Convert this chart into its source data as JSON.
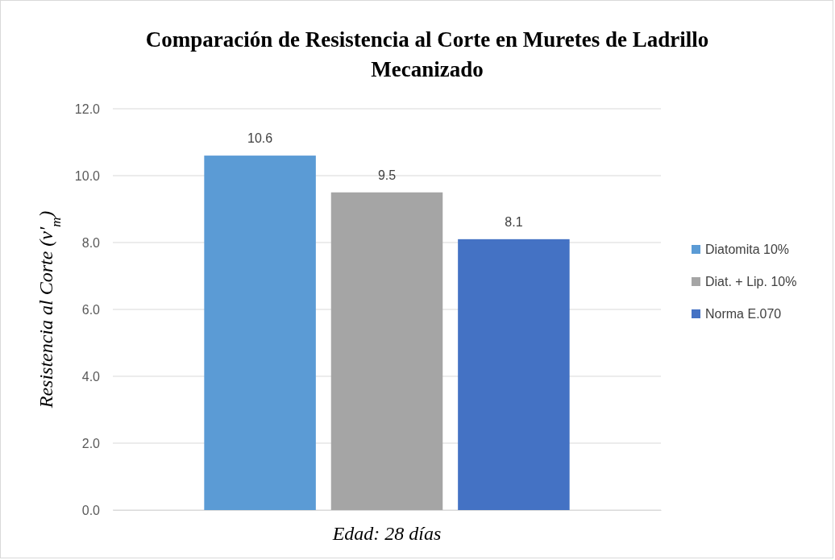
{
  "chart_data": {
    "type": "bar",
    "title": "Comparación de Resistencia al Corte en Muretes de Ladrillo Mecanizado",
    "xlabel": "Edad: 28 días",
    "ylabel": "Resistencia al Corte (v'$_{m}$)",
    "categories": [
      null
    ],
    "series": [
      {
        "name": "Diatomita 10%",
        "color": "#5b9bd5",
        "values": [
          10.6
        ]
      },
      {
        "name": "Diat. + Lip. 10%",
        "color": "#a5a5a5",
        "values": [
          9.5
        ]
      },
      {
        "name": "Norma E.070",
        "color": "#4472c4",
        "values": [
          8.1
        ]
      }
    ],
    "ylim": [
      0,
      12
    ],
    "yticks": [
      {
        "value": 0,
        "label": "0.0"
      },
      {
        "value": 2,
        "label": "2.0"
      },
      {
        "value": 4,
        "label": "4.0"
      },
      {
        "value": 6,
        "label": "6.0"
      },
      {
        "value": 8,
        "label": "8.0"
      },
      {
        "value": 10,
        "label": "10.0"
      },
      {
        "value": 12,
        "label": "12.0"
      }
    ],
    "grid": "y",
    "legend": "right",
    "data_labels": true
  }
}
